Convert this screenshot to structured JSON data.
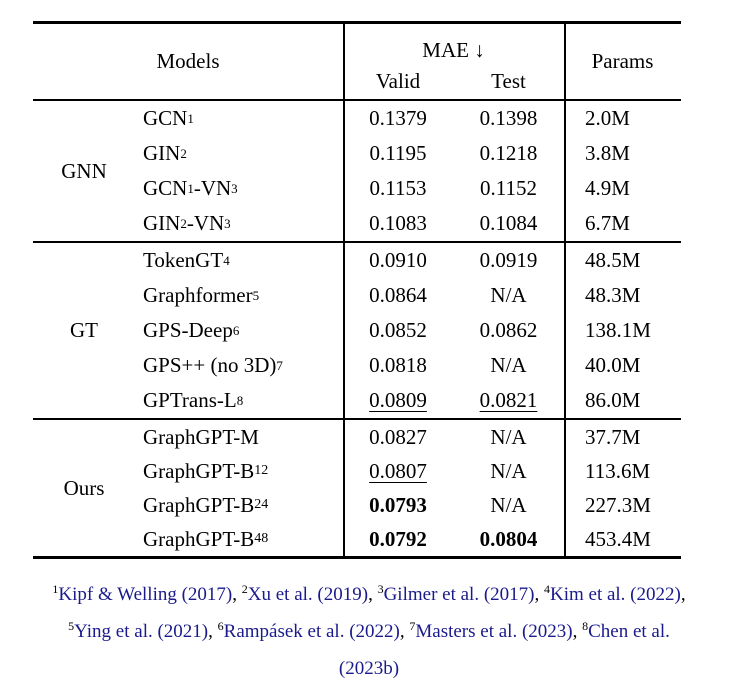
{
  "table": {
    "header": {
      "models_label": "Models",
      "mae_label": "MAE ↓",
      "valid_label": "Valid",
      "test_label": "Test",
      "params_label": "Params"
    },
    "groups": [
      {
        "label": "GNN",
        "rows": [
          {
            "model": [
              {
                "t": "GCN"
              },
              {
                "t": "1",
                "s": "sup"
              }
            ],
            "valid": {
              "v": "0.1379"
            },
            "test": {
              "v": "0.1398"
            },
            "params": "2.0M"
          },
          {
            "model": [
              {
                "t": "GIN"
              },
              {
                "t": "2",
                "s": "sup"
              }
            ],
            "valid": {
              "v": "0.1195"
            },
            "test": {
              "v": "0.1218"
            },
            "params": "3.8M"
          },
          {
            "model": [
              {
                "t": "GCN"
              },
              {
                "t": "1",
                "s": "sup"
              },
              {
                "t": "-VN"
              },
              {
                "t": "3",
                "s": "sup"
              }
            ],
            "valid": {
              "v": "0.1153"
            },
            "test": {
              "v": "0.1152"
            },
            "params": "4.9M"
          },
          {
            "model": [
              {
                "t": "GIN"
              },
              {
                "t": "2",
                "s": "sup"
              },
              {
                "t": "-VN"
              },
              {
                "t": "3",
                "s": "sup"
              }
            ],
            "valid": {
              "v": "0.1083"
            },
            "test": {
              "v": "0.1084"
            },
            "params": "6.7M"
          }
        ]
      },
      {
        "label": "GT",
        "rows": [
          {
            "model": [
              {
                "t": "TokenGT"
              },
              {
                "t": "4",
                "s": "sup"
              }
            ],
            "valid": {
              "v": "0.0910"
            },
            "test": {
              "v": "0.0919"
            },
            "params": "48.5M"
          },
          {
            "model": [
              {
                "t": "Graphformer"
              },
              {
                "t": "5",
                "s": "sup"
              }
            ],
            "valid": {
              "v": "0.0864"
            },
            "test": {
              "v": "N/A"
            },
            "params": "48.3M"
          },
          {
            "model": [
              {
                "t": "GPS-Deep"
              },
              {
                "t": "6",
                "s": "sup"
              }
            ],
            "valid": {
              "v": "0.0852"
            },
            "test": {
              "v": "0.0862"
            },
            "params": "138.1M"
          },
          {
            "model": [
              {
                "t": "GPS++ (no 3D)"
              },
              {
                "t": "7",
                "s": "sup"
              }
            ],
            "valid": {
              "v": "0.0818"
            },
            "test": {
              "v": "N/A"
            },
            "params": "40.0M"
          },
          {
            "model": [
              {
                "t": "GPTrans-L"
              },
              {
                "t": "8",
                "s": "sup"
              }
            ],
            "valid": {
              "v": "0.0809",
              "s": "underline"
            },
            "test": {
              "v": "0.0821",
              "s": "underline"
            },
            "params": "86.0M"
          }
        ]
      },
      {
        "label": "Ours",
        "rows": [
          {
            "model": [
              {
                "t": "GraphGPT-M"
              }
            ],
            "valid": {
              "v": "0.0827"
            },
            "test": {
              "v": "N/A"
            },
            "params": "37.7M"
          },
          {
            "model": [
              {
                "t": "GraphGPT-B"
              },
              {
                "t": "12",
                "s": "sub"
              }
            ],
            "valid": {
              "v": "0.0807",
              "s": "underline"
            },
            "test": {
              "v": "N/A"
            },
            "params": "113.6M"
          },
          {
            "model": [
              {
                "t": "GraphGPT-B"
              },
              {
                "t": "24",
                "s": "sub"
              }
            ],
            "valid": {
              "v": "0.0793",
              "s": "bold"
            },
            "test": {
              "v": "N/A"
            },
            "params": "227.3M"
          },
          {
            "model": [
              {
                "t": "GraphGPT-B"
              },
              {
                "t": "48",
                "s": "sub"
              }
            ],
            "valid": {
              "v": "0.0792",
              "s": "bold"
            },
            "test": {
              "v": "0.0804",
              "s": "bold"
            },
            "params": "453.4M"
          }
        ]
      }
    ]
  },
  "footnotes": {
    "link_color": "#1a1a8c",
    "text_color": "#000000",
    "lines": [
      [
        {
          "sup": "1",
          "cite": "Kipf & Welling (2017)",
          "after": ", "
        },
        {
          "sup": "2",
          "cite": "Xu et al. (2019)",
          "after": ", "
        },
        {
          "sup": "3",
          "cite": "Gilmer et al. (2017)",
          "after": ", "
        },
        {
          "sup": "4",
          "cite": "Kim et al. (2022)",
          "after": ","
        }
      ],
      [
        {
          "sup": "5",
          "cite": "Ying et al. (2021)",
          "after": ", "
        },
        {
          "sup": "6",
          "cite": "Rampásek et al. (2022)",
          "after": ", "
        },
        {
          "sup": "7",
          "cite": "Masters et al. (2023)",
          "after": ", "
        },
        {
          "sup": "8",
          "cite": "Chen et al.",
          "after": ""
        }
      ],
      [
        {
          "sup": "",
          "cite": "(2023b)",
          "after": ""
        }
      ]
    ]
  }
}
